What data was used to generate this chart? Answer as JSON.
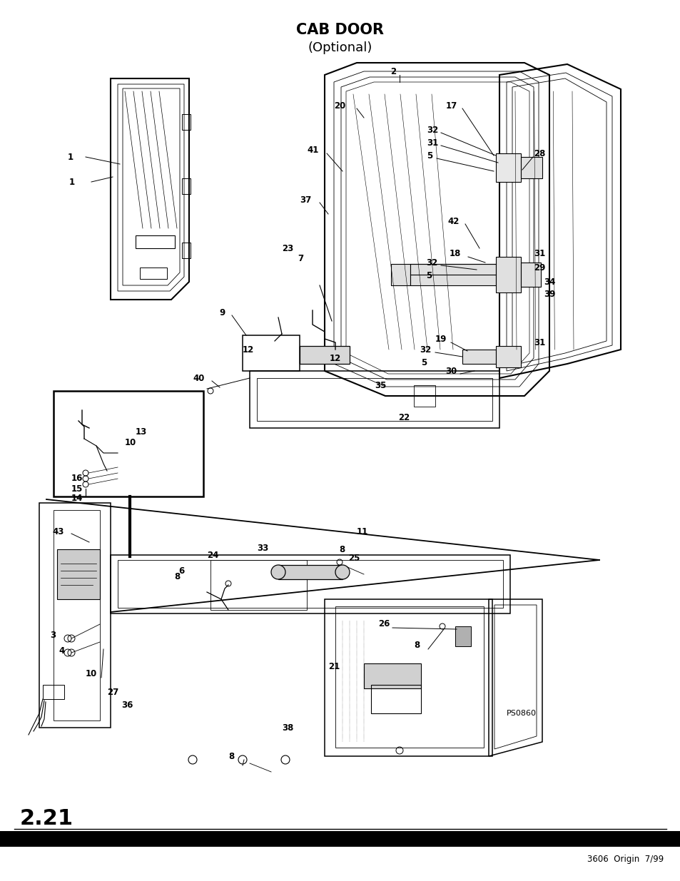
{
  "title_line1": "CAB DOOR",
  "title_line2": "(Optional)",
  "page_number": "2.21",
  "footer_text": "3606  Origin  7/99",
  "ps_code": "PS0860",
  "bg_color": "#ffffff",
  "title_fontsize": 15,
  "subtitle_fontsize": 13,
  "page_num_fontsize": 22,
  "footer_fontsize": 8.5,
  "label_fontsize": 8.5
}
